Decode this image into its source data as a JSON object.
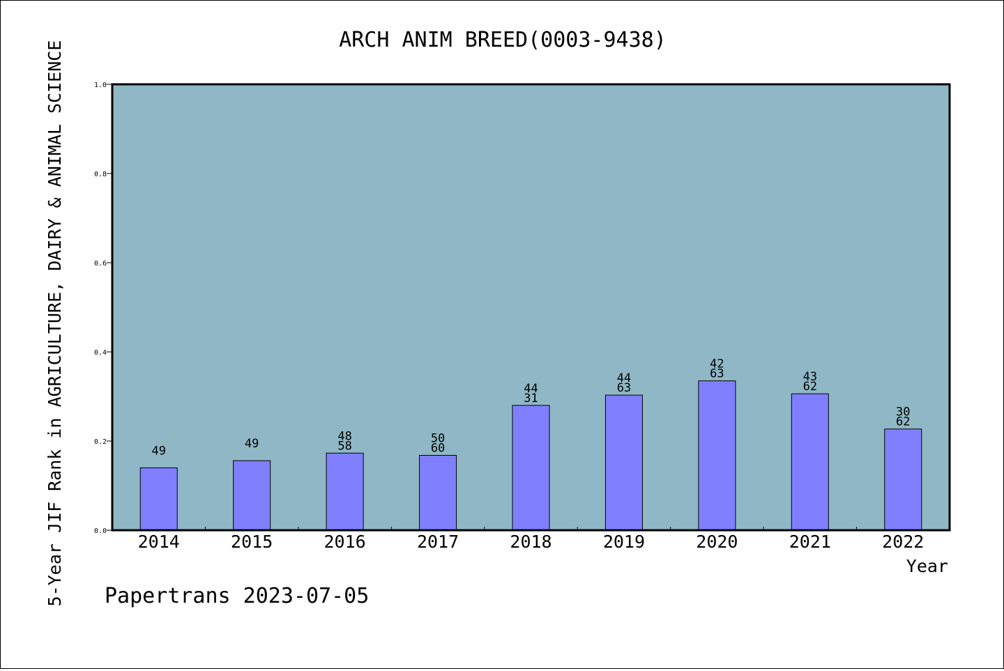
{
  "chart_data": {
    "type": "bar",
    "title": "ARCH ANIM BREED(0003-9438)",
    "xlabel": "Year",
    "ylabel": "5-Year JIF Rank in AGRICULTURE, DAIRY & ANIMAL SCIENCE",
    "ylim": [
      0,
      1.0
    ],
    "yticks": [
      "0.0",
      "0.2",
      "0.4",
      "0.6",
      "0.8",
      "1.0"
    ],
    "grid": false,
    "categories": [
      "2014",
      "2015",
      "2016",
      "2017",
      "2018",
      "2019",
      "2020",
      "2021",
      "2022"
    ],
    "values": [
      0.14,
      0.156,
      0.173,
      0.168,
      0.28,
      0.303,
      0.335,
      0.306,
      0.227
    ],
    "bar_labels": [
      [
        "49"
      ],
      [
        "49"
      ],
      [
        "48",
        "58"
      ],
      [
        "50",
        "60"
      ],
      [
        "44",
        "31"
      ],
      [
        "44",
        "63"
      ],
      [
        "42",
        "63"
      ],
      [
        "43",
        "62"
      ],
      [
        "30",
        "62"
      ]
    ],
    "footer": "Papertrans 2023-07-05",
    "colors": {
      "plot_background": "#8fb7c5",
      "bar_fill": "#8080ff",
      "bar_stroke": "#000000",
      "frame": "#000000"
    }
  }
}
